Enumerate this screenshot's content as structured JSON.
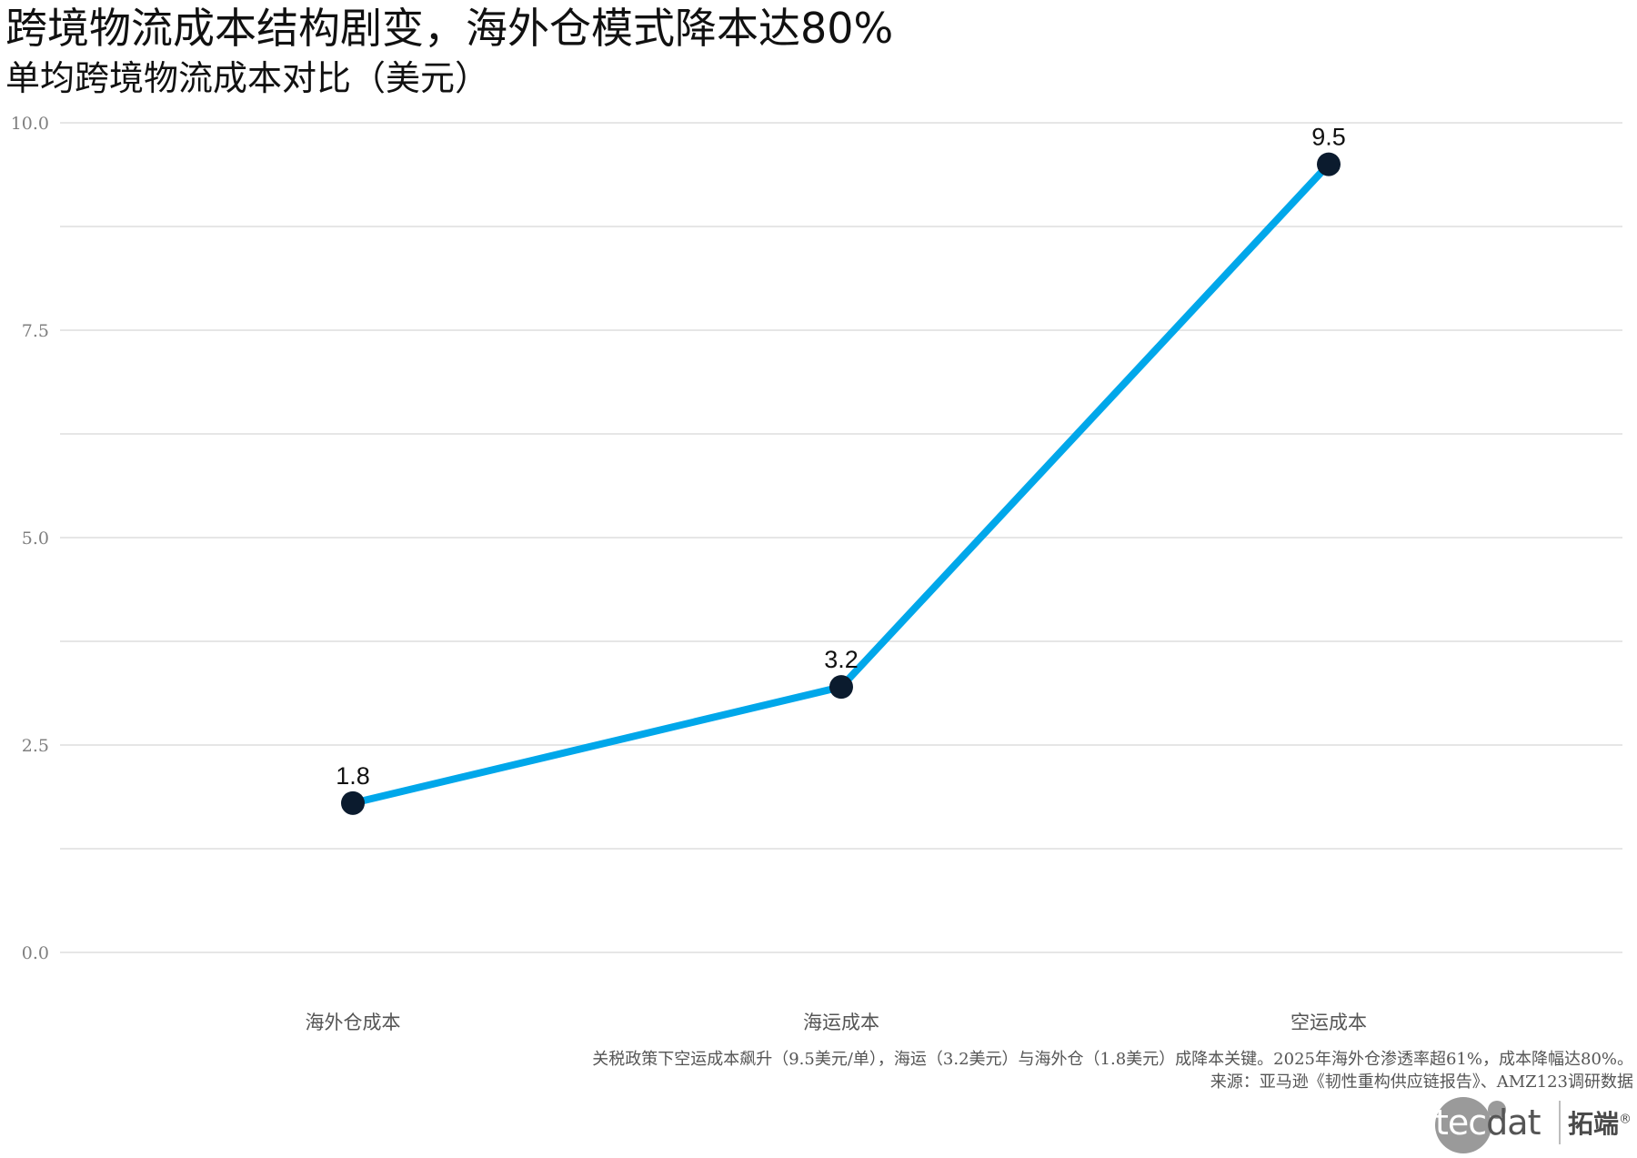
{
  "chart_data": {
    "type": "line",
    "title": "跨境物流成本结构剧变，海外仓模式降本达80%",
    "subtitle": "单均跨境物流成本对比（美元）",
    "categories": [
      "海外仓成本",
      "海运成本",
      "空运成本"
    ],
    "values": [
      1.8,
      3.2,
      9.5
    ],
    "value_labels": [
      "1.8",
      "3.2",
      "9.5"
    ],
    "ylim": [
      0,
      10
    ],
    "yticks": [
      0,
      2.5,
      5,
      7.5,
      10
    ],
    "ytick_labels": [
      "0.0",
      "2.5",
      "5.0",
      "7.5",
      "10.0"
    ],
    "grid": true,
    "xlabel": "",
    "ylabel": "",
    "caption": [
      "关税政策下空运成本飙升（9.5美元/单），海运（3.2美元）与海外仓（1.8美元）成降本关键。2025年海外仓渗透率超61%，成本降幅达80%。",
      "来源：亚马逊《韧性重构供应链报告》、AMZ123调研数据"
    ],
    "colors": {
      "line": "#00A7EA",
      "point": "#0B1B2E",
      "grid": "#E6E6E6",
      "axis_text": "#7F7F7F"
    }
  },
  "brand": {
    "logo_text_light": "tec",
    "logo_text_dark": "dat",
    "name_cn": "拓端",
    "registered": "®"
  }
}
